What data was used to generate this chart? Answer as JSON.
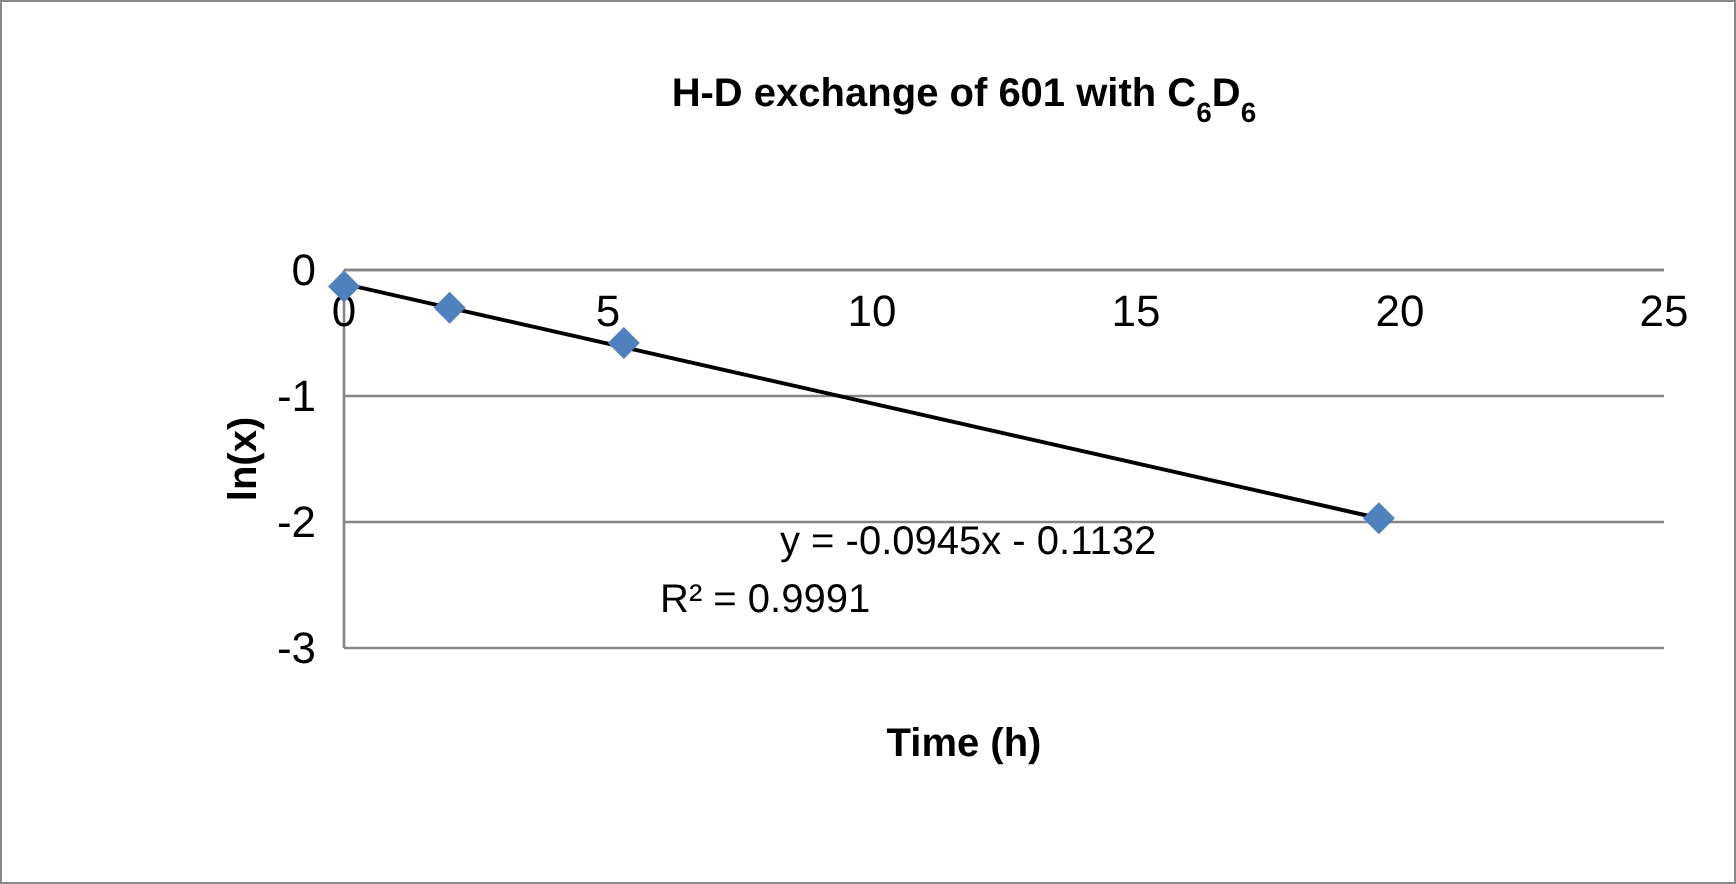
{
  "chart_data": {
    "type": "scatter",
    "title": "H-D exchange of 601 with C$_{6}$D$_{6}$",
    "xlabel": "Time (h)",
    "ylabel": "ln(x)",
    "xlim": [
      0,
      25
    ],
    "xticks": [
      0,
      5,
      10,
      15,
      20,
      25
    ],
    "ylim": [
      -3,
      0
    ],
    "yticks": [
      -3,
      -2,
      -1,
      0
    ],
    "grid": "y",
    "series": [
      {
        "color": "#4f81bd",
        "marker": "diamond",
        "x": [
          0,
          2,
          5.3,
          19.6
        ],
        "values": [
          -0.13,
          -0.3,
          -0.58,
          -1.97
        ]
      },
      {
        "type": "line",
        "color": "#000000",
        "marker": "none",
        "x": [
          0,
          19.6
        ],
        "values": [
          -0.11,
          -1.97
        ]
      }
    ],
    "annotations": [
      "y = -0.0945x - 0.1132",
      "R² = 0.9991"
    ]
  }
}
